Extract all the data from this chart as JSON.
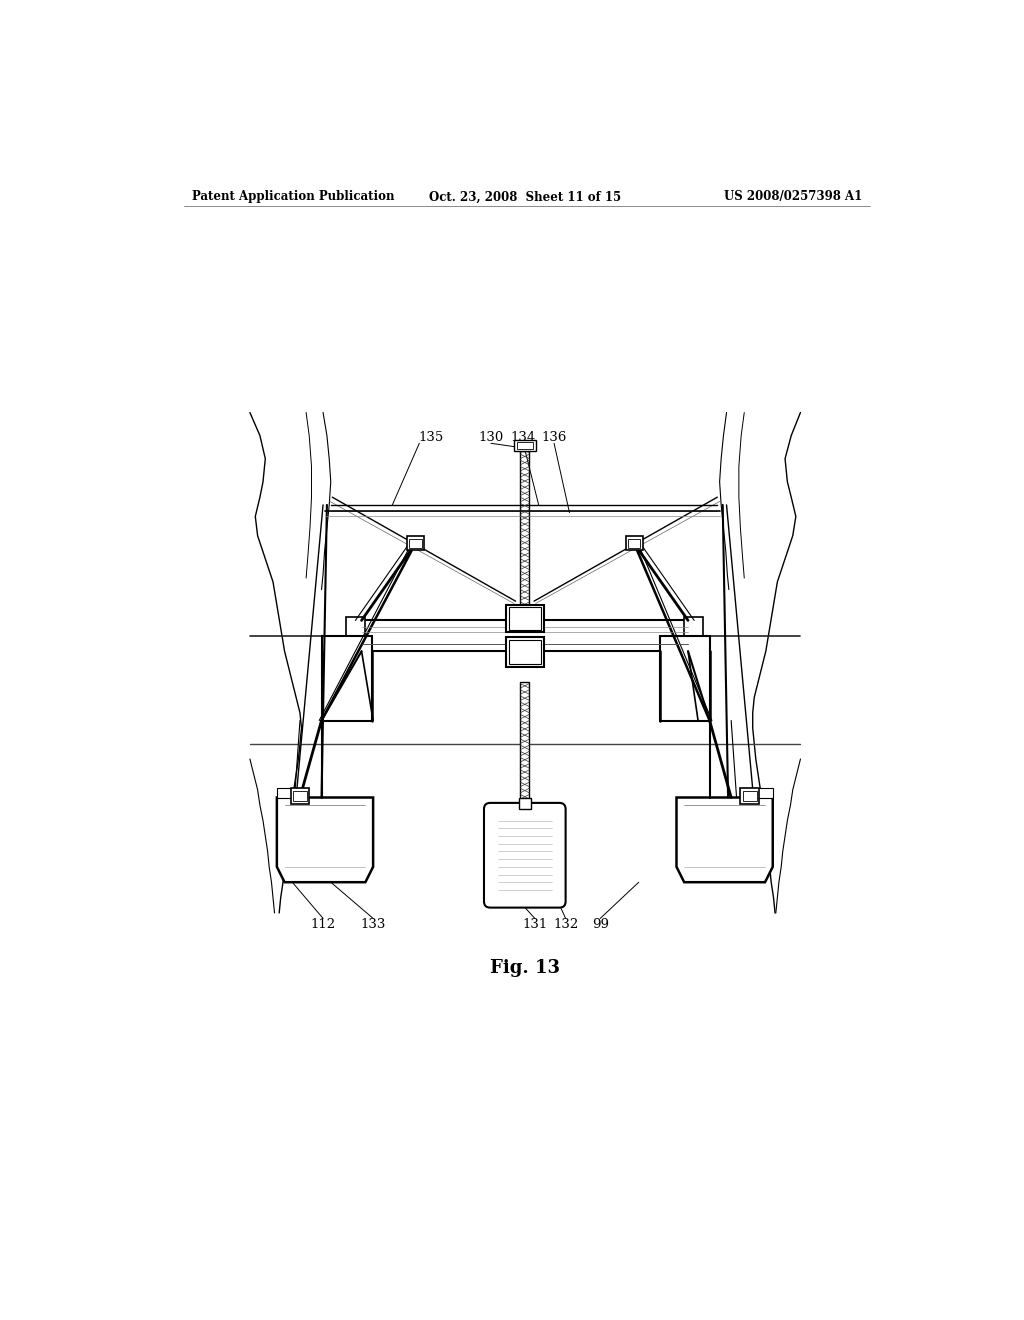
{
  "bg_color": "#ffffff",
  "header_left": "Patent Application Publication",
  "header_mid": "Oct. 23, 2008  Sheet 11 of 15",
  "header_right": "US 2008/0257398 A1",
  "figure_label": "Fig. 13",
  "line_color": "#000000"
}
